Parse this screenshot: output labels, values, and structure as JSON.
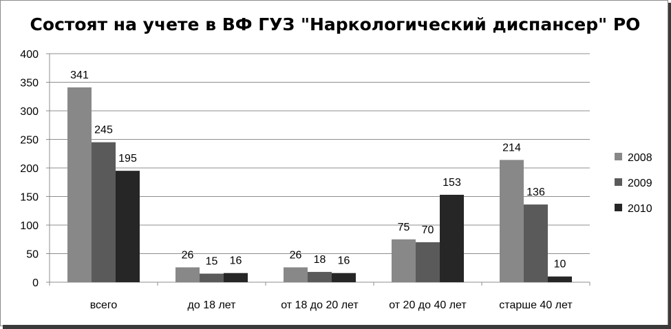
{
  "chart_data": {
    "type": "bar",
    "title": "Состоят на учете в ВФ ГУЗ \"Наркологический диспансер\" РО",
    "categories": [
      "всего",
      "до 18 лет",
      "от 18 до 20 лет",
      "от 20 до 40 лет",
      "старше 40 лет"
    ],
    "series": [
      {
        "name": "2008",
        "values": [
          341,
          26,
          26,
          75,
          214
        ],
        "color": "#888888"
      },
      {
        "name": "2009",
        "values": [
          245,
          15,
          18,
          70,
          136
        ],
        "color": "#5a5a5a"
      },
      {
        "name": "2010",
        "values": [
          195,
          16,
          16,
          153,
          10
        ],
        "color": "#262626"
      }
    ],
    "yticks": [
      "0",
      "50",
      "100",
      "150",
      "200",
      "250",
      "300",
      "350",
      "400"
    ],
    "ylim": [
      0,
      400
    ],
    "grid": true,
    "legend": "right",
    "data_labels": true
  }
}
